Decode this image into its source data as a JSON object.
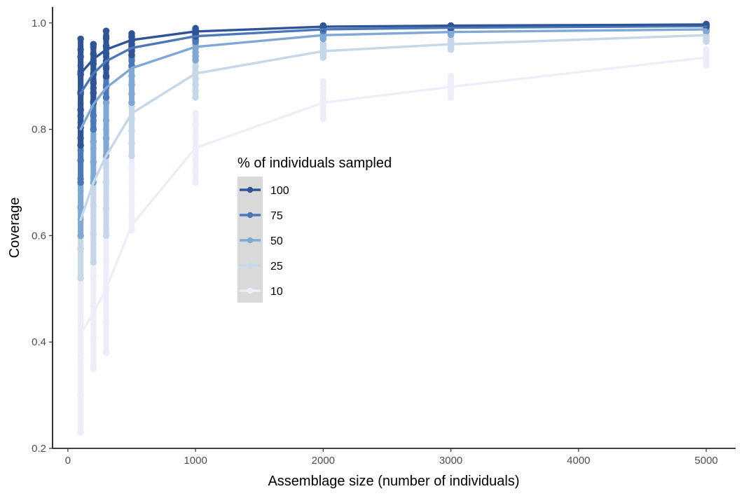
{
  "chart_data": {
    "type": "scatter",
    "xlabel": "Assemblage size (number of individuals)",
    "ylabel": "Coverage",
    "xlim": [
      -120,
      5230
    ],
    "ylim": [
      0.2,
      1.03
    ],
    "x_ticks": [
      0,
      1000,
      2000,
      3000,
      4000,
      5000
    ],
    "x_tick_labels": [
      "0",
      "1000",
      "2000",
      "3000",
      "4000",
      "5000"
    ],
    "y_ticks": [
      0.2,
      0.4,
      0.6,
      0.8,
      1.0
    ],
    "y_tick_labels": [
      "0.2",
      "0.4",
      "0.6",
      "0.8",
      "1.0"
    ],
    "grid": false,
    "legend": {
      "title": "% of individuals sampled",
      "position": "inside-center"
    },
    "series": [
      {
        "name": "100",
        "color": "#2f5597",
        "points": [
          {
            "x": 100,
            "ymin": 0.77,
            "ymax": 0.97
          },
          {
            "x": 200,
            "ymin": 0.85,
            "ymax": 0.96
          },
          {
            "x": 300,
            "ymin": 0.9,
            "ymax": 0.985
          },
          {
            "x": 500,
            "ymin": 0.94,
            "ymax": 0.98
          },
          {
            "x": 1000,
            "ymin": 0.975,
            "ymax": 0.99
          },
          {
            "x": 2000,
            "ymin": 0.99,
            "ymax": 0.995
          },
          {
            "x": 3000,
            "ymin": 0.991,
            "ymax": 0.995
          },
          {
            "x": 5000,
            "ymin": 0.994,
            "ymax": 0.998
          }
        ],
        "fit": [
          [
            100,
            0.905
          ],
          [
            200,
            0.932
          ],
          [
            300,
            0.95
          ],
          [
            500,
            0.968
          ],
          [
            1000,
            0.984
          ],
          [
            2000,
            0.993
          ],
          [
            3000,
            0.995
          ],
          [
            5000,
            0.997
          ]
        ]
      },
      {
        "name": "75",
        "color": "#4a78b8",
        "points": [
          {
            "x": 100,
            "ymin": 0.7,
            "ymax": 0.95
          },
          {
            "x": 200,
            "ymin": 0.8,
            "ymax": 0.955
          },
          {
            "x": 300,
            "ymin": 0.86,
            "ymax": 0.975
          },
          {
            "x": 500,
            "ymin": 0.92,
            "ymax": 0.975
          },
          {
            "x": 1000,
            "ymin": 0.965,
            "ymax": 0.985
          },
          {
            "x": 2000,
            "ymin": 0.985,
            "ymax": 0.993
          },
          {
            "x": 3000,
            "ymin": 0.987,
            "ymax": 0.994
          },
          {
            "x": 5000,
            "ymin": 0.992,
            "ymax": 0.996
          }
        ],
        "fit": [
          [
            100,
            0.868
          ],
          [
            200,
            0.905
          ],
          [
            300,
            0.928
          ],
          [
            500,
            0.953
          ],
          [
            1000,
            0.975
          ],
          [
            2000,
            0.988
          ],
          [
            3000,
            0.991
          ],
          [
            5000,
            0.994
          ]
        ]
      },
      {
        "name": "50",
        "color": "#80a8d5",
        "points": [
          {
            "x": 100,
            "ymin": 0.6,
            "ymax": 0.92
          },
          {
            "x": 200,
            "ymin": 0.7,
            "ymax": 0.93
          },
          {
            "x": 300,
            "ymin": 0.75,
            "ymax": 0.95
          },
          {
            "x": 500,
            "ymin": 0.85,
            "ymax": 0.95
          },
          {
            "x": 1000,
            "ymin": 0.93,
            "ymax": 0.975
          },
          {
            "x": 2000,
            "ymin": 0.97,
            "ymax": 0.985
          },
          {
            "x": 3000,
            "ymin": 0.978,
            "ymax": 0.988
          },
          {
            "x": 5000,
            "ymin": 0.984,
            "ymax": 0.992
          }
        ],
        "fit": [
          [
            100,
            0.8
          ],
          [
            200,
            0.847
          ],
          [
            300,
            0.878
          ],
          [
            500,
            0.915
          ],
          [
            1000,
            0.955
          ],
          [
            2000,
            0.977
          ],
          [
            3000,
            0.983
          ],
          [
            5000,
            0.988
          ]
        ]
      },
      {
        "name": "25",
        "color": "#c5d7e8",
        "points": [
          {
            "x": 100,
            "ymin": 0.52,
            "ymax": 0.85
          },
          {
            "x": 200,
            "ymin": 0.55,
            "ymax": 0.87
          },
          {
            "x": 300,
            "ymin": 0.6,
            "ymax": 0.9
          },
          {
            "x": 500,
            "ymin": 0.75,
            "ymax": 0.89
          },
          {
            "x": 1000,
            "ymin": 0.86,
            "ymax": 0.93
          },
          {
            "x": 2000,
            "ymin": 0.935,
            "ymax": 0.96
          },
          {
            "x": 3000,
            "ymin": 0.95,
            "ymax": 0.97
          },
          {
            "x": 5000,
            "ymin": 0.965,
            "ymax": 0.985
          }
        ],
        "fit": [
          [
            100,
            0.63
          ],
          [
            200,
            0.7
          ],
          [
            300,
            0.75
          ],
          [
            500,
            0.83
          ],
          [
            1000,
            0.905
          ],
          [
            2000,
            0.947
          ],
          [
            3000,
            0.96
          ],
          [
            5000,
            0.977
          ]
        ]
      },
      {
        "name": "10",
        "color": "#eeeefb",
        "points": [
          {
            "x": 100,
            "ymin": 0.23,
            "ymax": 0.65
          },
          {
            "x": 200,
            "ymin": 0.35,
            "ymax": 0.7
          },
          {
            "x": 300,
            "ymin": 0.38,
            "ymax": 0.73
          },
          {
            "x": 500,
            "ymin": 0.61,
            "ymax": 0.75
          },
          {
            "x": 1000,
            "ymin": 0.7,
            "ymax": 0.83
          },
          {
            "x": 2000,
            "ymin": 0.82,
            "ymax": 0.89
          },
          {
            "x": 3000,
            "ymin": 0.86,
            "ymax": 0.9
          },
          {
            "x": 5000,
            "ymin": 0.92,
            "ymax": 0.95
          }
        ],
        "fit": [
          [
            100,
            0.415
          ],
          [
            200,
            0.455
          ],
          [
            300,
            0.5
          ],
          [
            500,
            0.62
          ],
          [
            1000,
            0.765
          ],
          [
            2000,
            0.85
          ],
          [
            3000,
            0.88
          ],
          [
            5000,
            0.935
          ]
        ]
      }
    ]
  }
}
